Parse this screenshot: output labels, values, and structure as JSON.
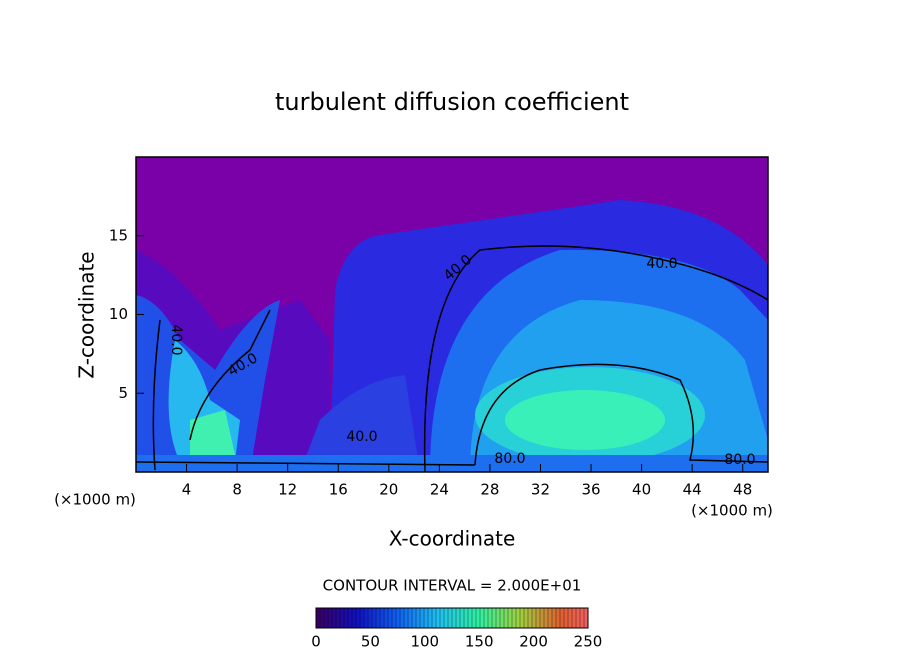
{
  "chart_data": {
    "type": "contour",
    "title": "turbulent diffusion coefficient",
    "x_label": "X-coordinate",
    "y_label": "Z-coordinate",
    "x_unit": "(×1000 m)",
    "xlim": [
      0,
      50
    ],
    "xticks": [
      4,
      8,
      12,
      16,
      20,
      24,
      28,
      32,
      36,
      40,
      44,
      48
    ],
    "ylim": [
      0,
      20
    ],
    "yticks": [
      5,
      10,
      15
    ],
    "contour_levels": [
      40,
      80
    ],
    "contour_level_labels": [
      "40.0",
      "80.0"
    ],
    "annotation": "CONTOUR INTERVAL = 2.000E+01",
    "clim": [
      0,
      250
    ],
    "cticks": [
      0,
      50,
      100,
      150,
      200,
      250
    ]
  }
}
